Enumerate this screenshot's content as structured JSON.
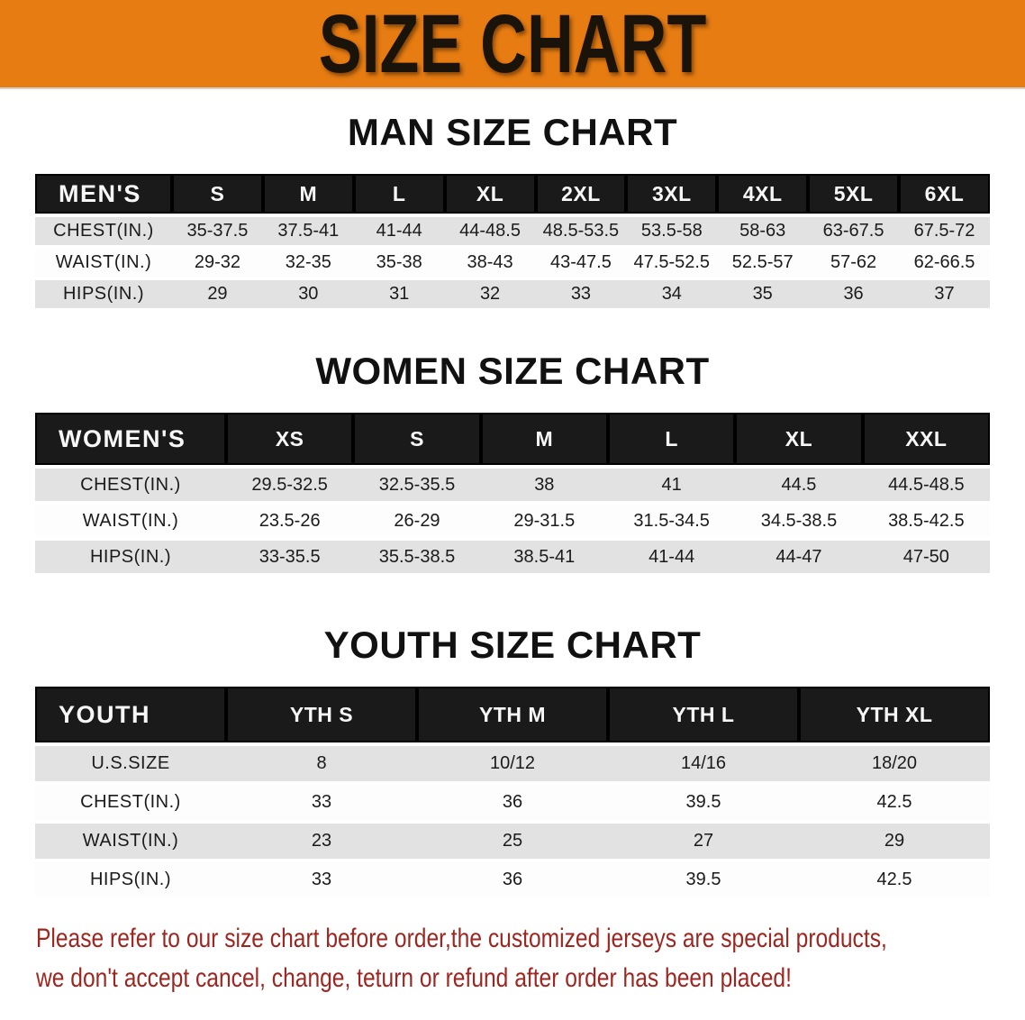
{
  "banner": {
    "title": "SIZE CHART"
  },
  "sections": [
    {
      "title": "MAN SIZE CHART",
      "header_label": "MEN'S",
      "columns": [
        "S",
        "M",
        "L",
        "XL",
        "2XL",
        "3XL",
        "4XL",
        "5XL",
        "6XL"
      ],
      "rows": [
        {
          "label": "CHEST(IN.)",
          "values": [
            "35-37.5",
            "37.5-41",
            "41-44",
            "44-48.5",
            "48.5-53.5",
            "53.5-58",
            "58-63",
            "63-67.5",
            "67.5-72"
          ]
        },
        {
          "label": "WAIST(IN.)",
          "values": [
            "29-32",
            "32-35",
            "35-38",
            "38-43",
            "43-47.5",
            "47.5-52.5",
            "52.5-57",
            "57-62",
            "62-66.5"
          ]
        },
        {
          "label": "HIPS(IN.)",
          "values": [
            "29",
            "30",
            "31",
            "32",
            "33",
            "34",
            "35",
            "36",
            "37"
          ]
        }
      ]
    },
    {
      "title": "WOMEN SIZE CHART",
      "header_label": "WOMEN'S",
      "columns": [
        "XS",
        "S",
        "M",
        "L",
        "XL",
        "XXL"
      ],
      "rows": [
        {
          "label": "CHEST(IN.)",
          "values": [
            "29.5-32.5",
            "32.5-35.5",
            "38",
            "41",
            "44.5",
            "44.5-48.5"
          ]
        },
        {
          "label": "WAIST(IN.)",
          "values": [
            "23.5-26",
            "26-29",
            "29-31.5",
            "31.5-34.5",
            "34.5-38.5",
            "38.5-42.5"
          ]
        },
        {
          "label": "HIPS(IN.)",
          "values": [
            "33-35.5",
            "35.5-38.5",
            "38.5-41",
            "41-44",
            "44-47",
            "47-50"
          ]
        }
      ]
    },
    {
      "title": "YOUTH SIZE CHART",
      "header_label": "YOUTH",
      "columns": [
        "YTH S",
        "YTH M",
        "YTH L",
        "YTH XL"
      ],
      "rows": [
        {
          "label": "U.S.SIZE",
          "values": [
            "8",
            "10/12",
            "14/16",
            "18/20"
          ]
        },
        {
          "label": "CHEST(IN.)",
          "values": [
            "33",
            "36",
            "39.5",
            "42.5"
          ]
        },
        {
          "label": "WAIST(IN.)",
          "values": [
            "23",
            "25",
            "27",
            "29"
          ]
        },
        {
          "label": "HIPS(IN.)",
          "values": [
            "33",
            "36",
            "39.5",
            "42.5"
          ]
        }
      ]
    }
  ],
  "disclaimer": {
    "line1": "Please refer to our size chart before order,the customized jerseys are special products,",
    "line2": "we don't accept cancel, change, teturn or refund after order has been placed!"
  },
  "colors": {
    "banner_bg": "#e67c12",
    "banner_text": "#1a130a",
    "header_band": "#1a1a1a",
    "header_text": "#f7f7f7",
    "row_stripe": "#e2e2e2",
    "row_alt": "#fdfdfd",
    "title_text": "#111111",
    "disclaimer_text": "#9e2620"
  }
}
